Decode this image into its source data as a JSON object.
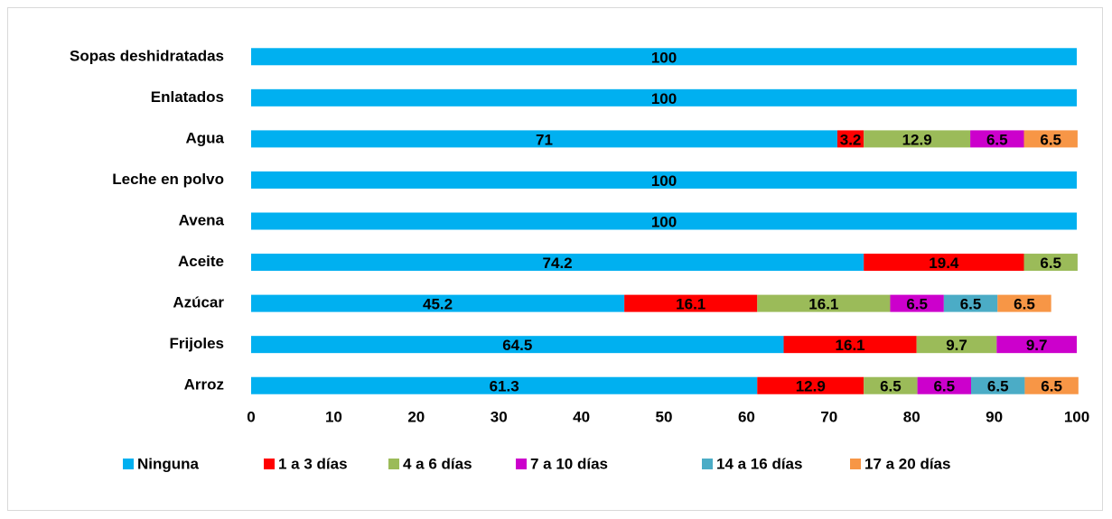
{
  "chart_data": {
    "type": "stacked-bar-horizontal",
    "categories": [
      "Sopas deshidratadas",
      "Enlatados",
      "Agua",
      "Leche en polvo",
      "Avena",
      "Aceite",
      "Azúcar",
      "Frijoles",
      "Arroz"
    ],
    "series": [
      {
        "name": "Ninguna",
        "color": "#00b0f0",
        "values": [
          100,
          100,
          71,
          100,
          100,
          74.2,
          45.2,
          64.5,
          61.3
        ]
      },
      {
        "name": "1 a 3 días",
        "color": "#ff0000",
        "values": [
          null,
          null,
          3.2,
          null,
          null,
          19.4,
          16.1,
          16.1,
          12.9
        ]
      },
      {
        "name": "4 a 6 días",
        "color": "#9bbb59",
        "values": [
          null,
          null,
          12.9,
          null,
          null,
          6.5,
          16.1,
          9.7,
          6.5
        ]
      },
      {
        "name": "7 a 10 días",
        "color": "#cc00cc",
        "values": [
          null,
          null,
          6.5,
          null,
          null,
          null,
          6.5,
          9.7,
          6.5
        ]
      },
      {
        "name": "14 a 16 días",
        "color": "#4bacc6",
        "values": [
          null,
          null,
          null,
          null,
          null,
          null,
          6.5,
          null,
          6.5
        ]
      },
      {
        "name": "17 a 20 días",
        "color": "#f79646",
        "values": [
          null,
          null,
          6.5,
          null,
          null,
          null,
          6.5,
          null,
          6.5
        ]
      }
    ],
    "xlim": [
      0,
      100
    ],
    "xticks": [
      0,
      10,
      20,
      30,
      40,
      50,
      60,
      70,
      80,
      90,
      100
    ],
    "legend": "bottom"
  }
}
